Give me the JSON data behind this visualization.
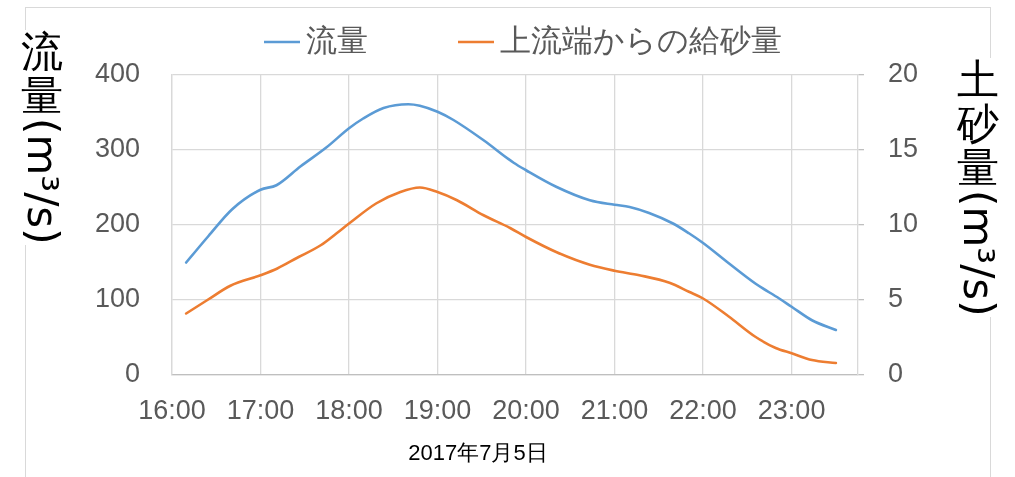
{
  "chart_data": {
    "type": "line",
    "xlabel": "2017年7月5日",
    "ylabel": "流量(m³/s)",
    "y2label": "土砂量(m³/s)",
    "series": [
      {
        "name": "流量",
        "color": "#5b9bd5",
        "x": [
          16.16,
          16.41,
          16.68,
          17.0,
          17.18,
          17.45,
          17.75,
          18.0,
          18.16,
          18.39,
          18.67,
          18.8,
          19.0,
          19.18,
          19.52,
          19.86,
          20.0,
          20.34,
          20.72,
          21.0,
          21.17,
          21.39,
          21.66,
          21.84,
          22.0,
          22.29,
          22.59,
          22.86,
          23.0,
          23.23,
          23.5
        ],
        "values": [
          150,
          185,
          221,
          247,
          253,
          278,
          304,
          329,
          342,
          356,
          361,
          359,
          351,
          340,
          313,
          283,
          273,
          251,
          233,
          227,
          224,
          216,
          202,
          189,
          176,
          149,
          122,
          102,
          91,
          73,
          60
        ]
      },
      {
        "name": "上流端からの給砂量",
        "color": "#ed7d31",
        "axis": "y2",
        "x": [
          16.16,
          16.4,
          16.66,
          17.0,
          17.19,
          17.41,
          17.68,
          17.86,
          18.0,
          18.31,
          18.58,
          18.8,
          19.0,
          19.22,
          19.52,
          19.82,
          20.0,
          20.34,
          20.72,
          21.0,
          21.28,
          21.62,
          21.84,
          22.0,
          22.29,
          22.59,
          22.82,
          23.0,
          23.23,
          23.5
        ],
        "values": [
          4.1,
          5.0,
          5.95,
          6.65,
          7.1,
          7.8,
          8.65,
          9.45,
          10.1,
          11.45,
          12.2,
          12.5,
          12.2,
          11.65,
          10.65,
          9.8,
          9.2,
          8.2,
          7.35,
          6.95,
          6.65,
          6.15,
          5.55,
          5.1,
          3.9,
          2.55,
          1.8,
          1.45,
          1.0,
          0.8
        ]
      }
    ],
    "xlim": [
      16,
      23.75
    ],
    "xticks": [
      {
        "value": 16,
        "label": "16:00"
      },
      {
        "value": 17,
        "label": "17:00"
      },
      {
        "value": 18,
        "label": "18:00"
      },
      {
        "value": 19,
        "label": "19:00"
      },
      {
        "value": 20,
        "label": "20:00"
      },
      {
        "value": 21,
        "label": "21:00"
      },
      {
        "value": 22,
        "label": "22:00"
      },
      {
        "value": 23,
        "label": "23:00"
      }
    ],
    "ylim": [
      0,
      400
    ],
    "yticks": [
      0,
      100,
      200,
      300,
      400
    ],
    "y2lim": [
      0,
      20
    ],
    "y2ticks": [
      0,
      5,
      10,
      15,
      20
    ],
    "grid": true,
    "legend": "top",
    "marker": "none"
  }
}
